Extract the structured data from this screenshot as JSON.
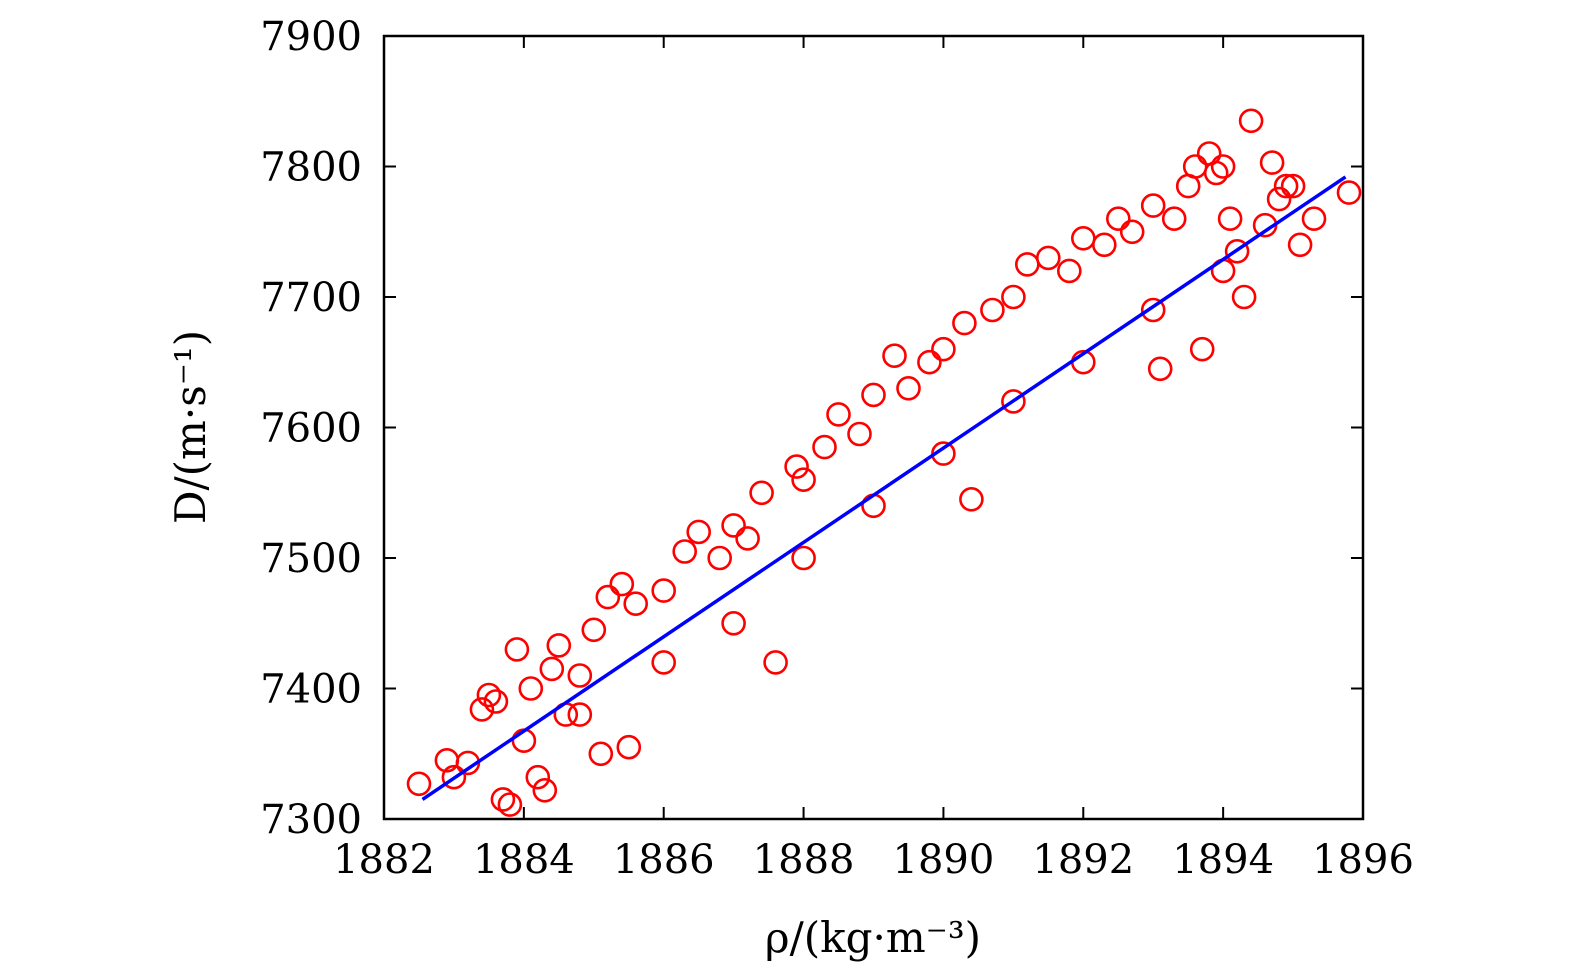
{
  "chart_data": {
    "type": "scatter",
    "title": "",
    "xlabel": "ρ/(kg·m⁻³)",
    "ylabel": "D/(m·s⁻¹)",
    "xlim": [
      1882,
      1896
    ],
    "ylim": [
      7300,
      7900
    ],
    "x_ticks": [
      "1882",
      "1884",
      "1886",
      "1888",
      "1890",
      "1892",
      "1894",
      "1896"
    ],
    "y_ticks": [
      "7300",
      "7400",
      "7500",
      "7600",
      "7700",
      "7800",
      "7900"
    ],
    "grid": false,
    "legend": "none",
    "marker_color": "#ff0000",
    "fit_color": "#0000ff",
    "series": [
      {
        "marker": "open-circle",
        "points": [
          [
            1882.5,
            7327
          ],
          [
            1882.9,
            7345
          ],
          [
            1883.0,
            7332
          ],
          [
            1883.2,
            7343
          ],
          [
            1883.4,
            7384
          ],
          [
            1883.5,
            7395
          ],
          [
            1883.6,
            7390
          ],
          [
            1883.7,
            7315
          ],
          [
            1883.8,
            7311
          ],
          [
            1883.9,
            7430
          ],
          [
            1884.0,
            7360
          ],
          [
            1884.1,
            7400
          ],
          [
            1884.2,
            7332
          ],
          [
            1884.3,
            7322
          ],
          [
            1884.4,
            7415
          ],
          [
            1884.5,
            7433
          ],
          [
            1884.6,
            7380
          ],
          [
            1884.8,
            7410
          ],
          [
            1885.0,
            7445
          ],
          [
            1885.2,
            7470
          ],
          [
            1885.1,
            7350
          ],
          [
            1885.5,
            7355
          ],
          [
            1885.4,
            7480
          ],
          [
            1885.6,
            7465
          ],
          [
            1886.0,
            7475
          ],
          [
            1886.3,
            7505
          ],
          [
            1886.5,
            7520
          ],
          [
            1886.8,
            7500
          ],
          [
            1887.0,
            7525
          ],
          [
            1887.2,
            7515
          ],
          [
            1887.4,
            7550
          ],
          [
            1887.6,
            7420
          ],
          [
            1887.9,
            7570
          ],
          [
            1888.0,
            7560
          ],
          [
            1888.3,
            7585
          ],
          [
            1888.5,
            7610
          ],
          [
            1888.8,
            7595
          ],
          [
            1889.0,
            7625
          ],
          [
            1889.3,
            7655
          ],
          [
            1889.5,
            7630
          ],
          [
            1889.8,
            7650
          ],
          [
            1890.0,
            7660
          ],
          [
            1890.3,
            7680
          ],
          [
            1890.4,
            7545
          ],
          [
            1890.7,
            7690
          ],
          [
            1891.0,
            7700
          ],
          [
            1891.2,
            7725
          ],
          [
            1891.5,
            7730
          ],
          [
            1891.8,
            7720
          ],
          [
            1892.0,
            7745
          ],
          [
            1892.3,
            7740
          ],
          [
            1892.5,
            7760
          ],
          [
            1892.7,
            7750
          ],
          [
            1893.0,
            7770
          ],
          [
            1893.1,
            7645
          ],
          [
            1893.3,
            7760
          ],
          [
            1893.5,
            7785
          ],
          [
            1893.6,
            7800
          ],
          [
            1893.7,
            7660
          ],
          [
            1893.8,
            7810
          ],
          [
            1893.9,
            7795
          ],
          [
            1894.0,
            7800
          ],
          [
            1894.1,
            7760
          ],
          [
            1894.2,
            7735
          ],
          [
            1894.3,
            7700
          ],
          [
            1894.4,
            7835
          ],
          [
            1894.6,
            7755
          ],
          [
            1894.7,
            7803
          ],
          [
            1894.8,
            7775
          ],
          [
            1894.9,
            7785
          ],
          [
            1895.0,
            7785
          ],
          [
            1895.1,
            7740
          ],
          [
            1895.3,
            7760
          ],
          [
            1895.8,
            7780
          ],
          [
            1884.8,
            7380
          ],
          [
            1886.0,
            7420
          ],
          [
            1887.0,
            7450
          ],
          [
            1888.0,
            7500
          ],
          [
            1889.0,
            7540
          ],
          [
            1890.0,
            7580
          ],
          [
            1891.0,
            7620
          ],
          [
            1892.0,
            7650
          ],
          [
            1893.0,
            7690
          ],
          [
            1894.0,
            7720
          ]
        ]
      },
      {
        "type": "line",
        "points": [
          [
            1882.55,
            7315
          ],
          [
            1895.75,
            7792
          ]
        ]
      }
    ]
  }
}
